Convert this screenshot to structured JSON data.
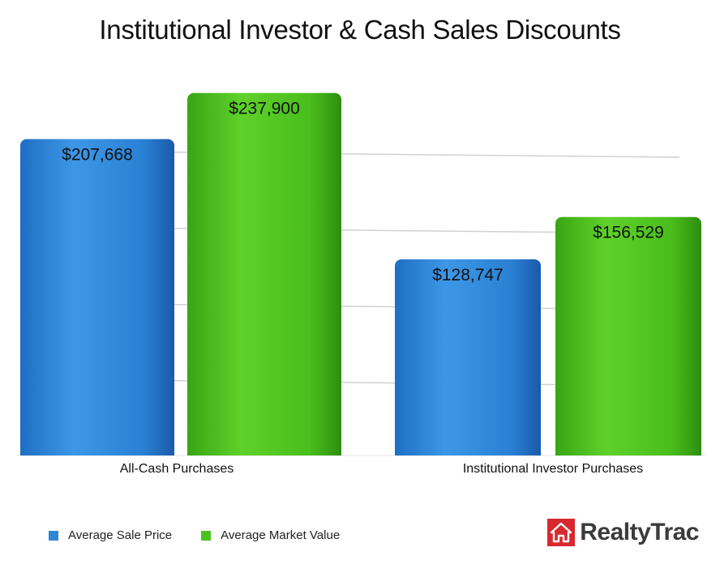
{
  "chart_data": {
    "type": "bar",
    "title": "Institutional Investor & Cash Sales Discounts",
    "categories": [
      "All-Cash Purchases",
      "Institutional Investor Purchases"
    ],
    "series": [
      {
        "name": "Average Sale Price",
        "color": "#2e86d6",
        "values": [
          207668,
          128747
        ],
        "labels": [
          "$207,668",
          "$128,747"
        ]
      },
      {
        "name": "Average Market Value",
        "color": "#4cc21f",
        "values": [
          237900,
          156529
        ],
        "labels": [
          "$237,900",
          "$156,529"
        ]
      }
    ],
    "ylim": [
      0,
      250000
    ],
    "grid": true,
    "legend": "bottom-left"
  },
  "branding": {
    "logo_text": "RealtyTrac",
    "logo_mark": "house-icon",
    "logo_color": "#d7282f"
  }
}
